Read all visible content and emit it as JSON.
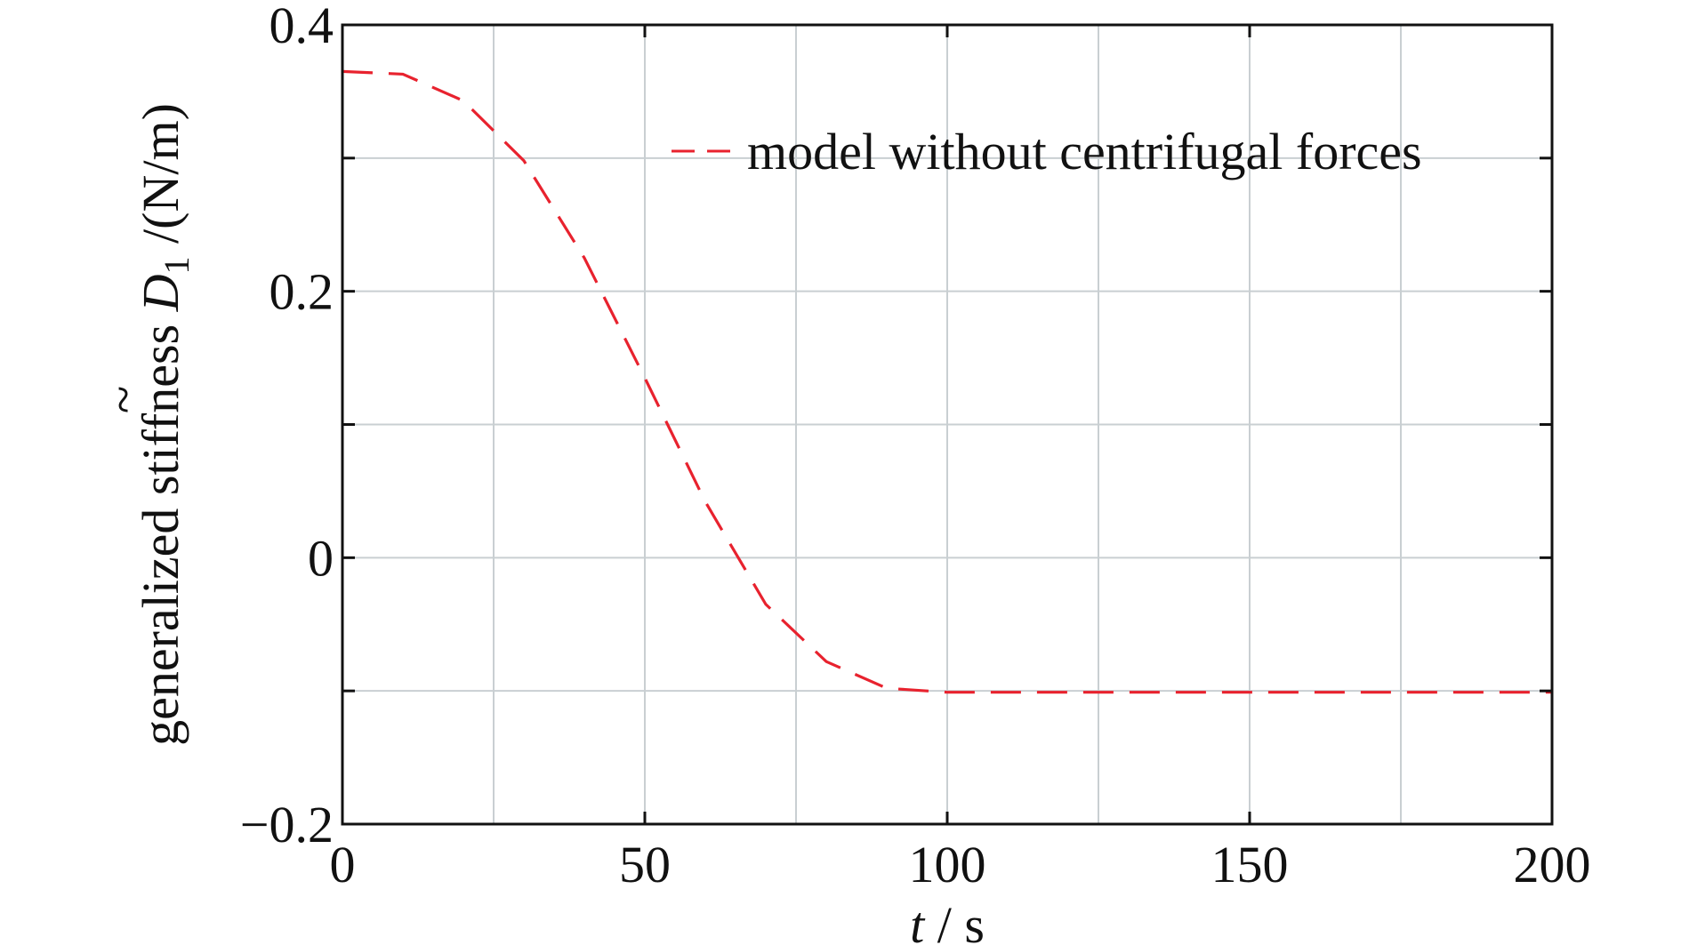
{
  "chart_data": {
    "type": "line",
    "title": "",
    "xlabel": {
      "var": "t",
      "unit": " / s"
    },
    "ylabel": {
      "prefix": "generalized stiffness ",
      "symbol": "D",
      "tilde": "~",
      "subscript": "1",
      "unit": " /(N/m)"
    },
    "xlim": [
      0,
      200
    ],
    "ylim": [
      -0.2,
      0.4
    ],
    "x_ticks": [
      0,
      50,
      100,
      150,
      200
    ],
    "x_tick_labels": [
      "0",
      "50",
      "100",
      "150",
      "200"
    ],
    "y_ticks": [
      -0.2,
      0,
      0.2,
      0.4
    ],
    "y_tick_labels": [
      "−0.2",
      "0",
      "0.2",
      "0.4"
    ],
    "grid": true,
    "legend_position": "top-right",
    "series": [
      {
        "name": "model without centrifugal forces",
        "color": "#e8222e",
        "style": "dashed",
        "x": [
          0,
          10,
          20,
          30,
          40,
          50,
          60,
          70,
          80,
          90,
          100,
          120,
          150,
          200
        ],
        "y": [
          0.365,
          0.363,
          0.343,
          0.298,
          0.225,
          0.135,
          0.042,
          -0.035,
          -0.078,
          -0.098,
          -0.101,
          -0.101,
          -0.101,
          -0.101
        ]
      }
    ]
  }
}
